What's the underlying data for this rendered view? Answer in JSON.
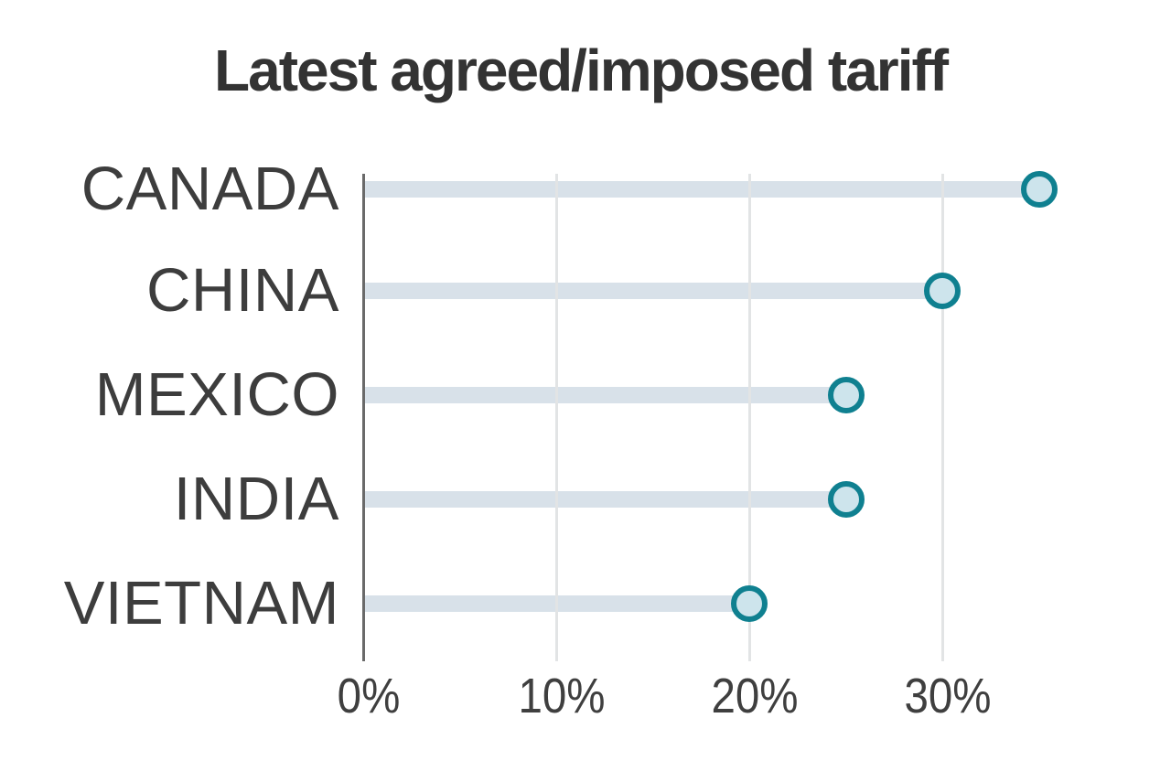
{
  "chart_data": {
    "type": "lollipop",
    "title": "Latest agreed/imposed tariff",
    "categories": [
      "CANADA",
      "CHINA",
      "MEXICO",
      "INDIA",
      "VIETNAM"
    ],
    "values": [
      35,
      30,
      25,
      25,
      20
    ],
    "value_suffix": "%",
    "x_ticks": [
      0,
      10,
      20,
      30
    ],
    "x_tick_labels": [
      "0%",
      "10%",
      "20%",
      "30%"
    ],
    "xlim": [
      0,
      41.8
    ],
    "ylabel": "",
    "xlabel": "",
    "grid": "vertical",
    "legend": "none",
    "colors": {
      "bar": "#d8e1e9",
      "dot_fill": "#cde4ec",
      "dot_ring": "#0f8090",
      "axis_line": "#6a6a6a",
      "gridline": "#e2e4e5",
      "title_text": "#333333",
      "label_text": "#3d3d3d",
      "tick_text": "#3f3f3f",
      "background": "#ffffff"
    }
  }
}
